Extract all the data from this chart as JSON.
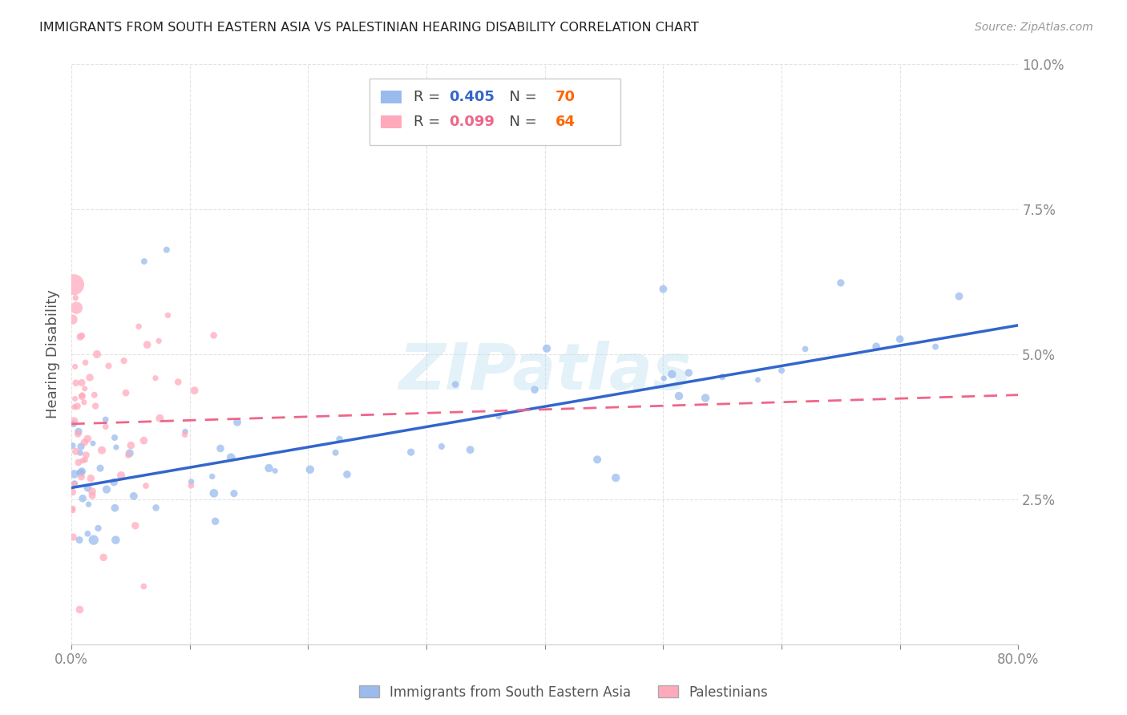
{
  "title": "IMMIGRANTS FROM SOUTH EASTERN ASIA VS PALESTINIAN HEARING DISABILITY CORRELATION CHART",
  "source": "Source: ZipAtlas.com",
  "ylabel": "Hearing Disability",
  "yticks": [
    0.0,
    0.025,
    0.05,
    0.075,
    0.1
  ],
  "ytick_labels": [
    "",
    "2.5%",
    "5.0%",
    "7.5%",
    "10.0%"
  ],
  "xlim": [
    0.0,
    0.8
  ],
  "ylim": [
    0.0,
    0.1
  ],
  "blue_R": 0.405,
  "blue_N": 70,
  "pink_R": 0.099,
  "pink_N": 64,
  "blue_color": "#99BBEE",
  "pink_color": "#FFAABB",
  "blue_line_color": "#3366CC",
  "pink_line_color": "#EE6688",
  "watermark": "ZIPatlas",
  "legend_label_blue": "Immigrants from South Eastern Asia",
  "legend_label_pink": "Palestinians",
  "tick_color": "#5599DD",
  "grid_color": "#DDDDDD",
  "title_color": "#222222",
  "source_color": "#999999",
  "ylabel_color": "#555555",
  "legend_N_color": "#FF6600",
  "blue_line_start_y": 0.027,
  "blue_line_end_y": 0.055,
  "pink_line_start_y": 0.038,
  "pink_line_end_y": 0.043
}
